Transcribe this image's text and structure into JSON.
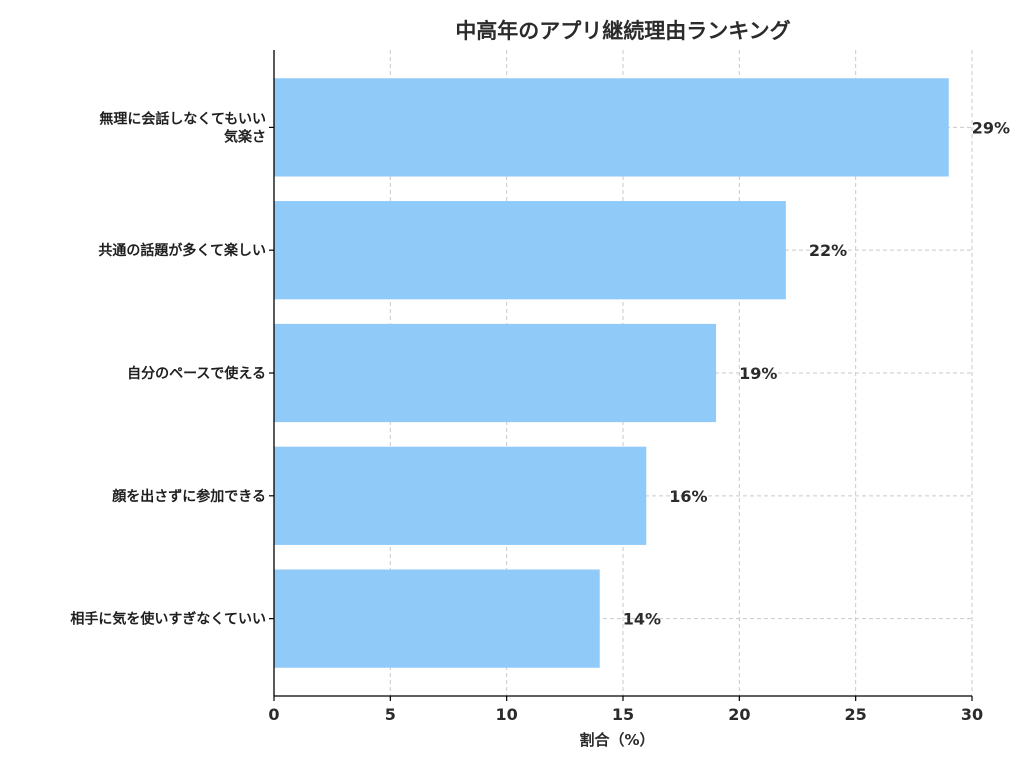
{
  "chart_data": {
    "type": "bar",
    "orientation": "horizontal",
    "title": "中高年のアプリ継続理由ランキング",
    "xlabel": "割合（%）",
    "ylabel": "",
    "xlim": [
      0,
      30
    ],
    "xticks": [
      0,
      5,
      10,
      15,
      20,
      25,
      30
    ],
    "grid": true,
    "bar_color": "#90CAF9",
    "categories": [
      [
        "無理に会話しなくてもいい",
        "気楽さ"
      ],
      [
        "共通の話題が多くて楽しい"
      ],
      [
        "自分のペースで使える"
      ],
      [
        "顔を出さずに参加できる"
      ],
      [
        "相手に気を使いすぎなくていい"
      ]
    ],
    "values": [
      29,
      22,
      19,
      16,
      14
    ],
    "data_labels": [
      "29%",
      "22%",
      "19%",
      "16%",
      "14%"
    ]
  }
}
